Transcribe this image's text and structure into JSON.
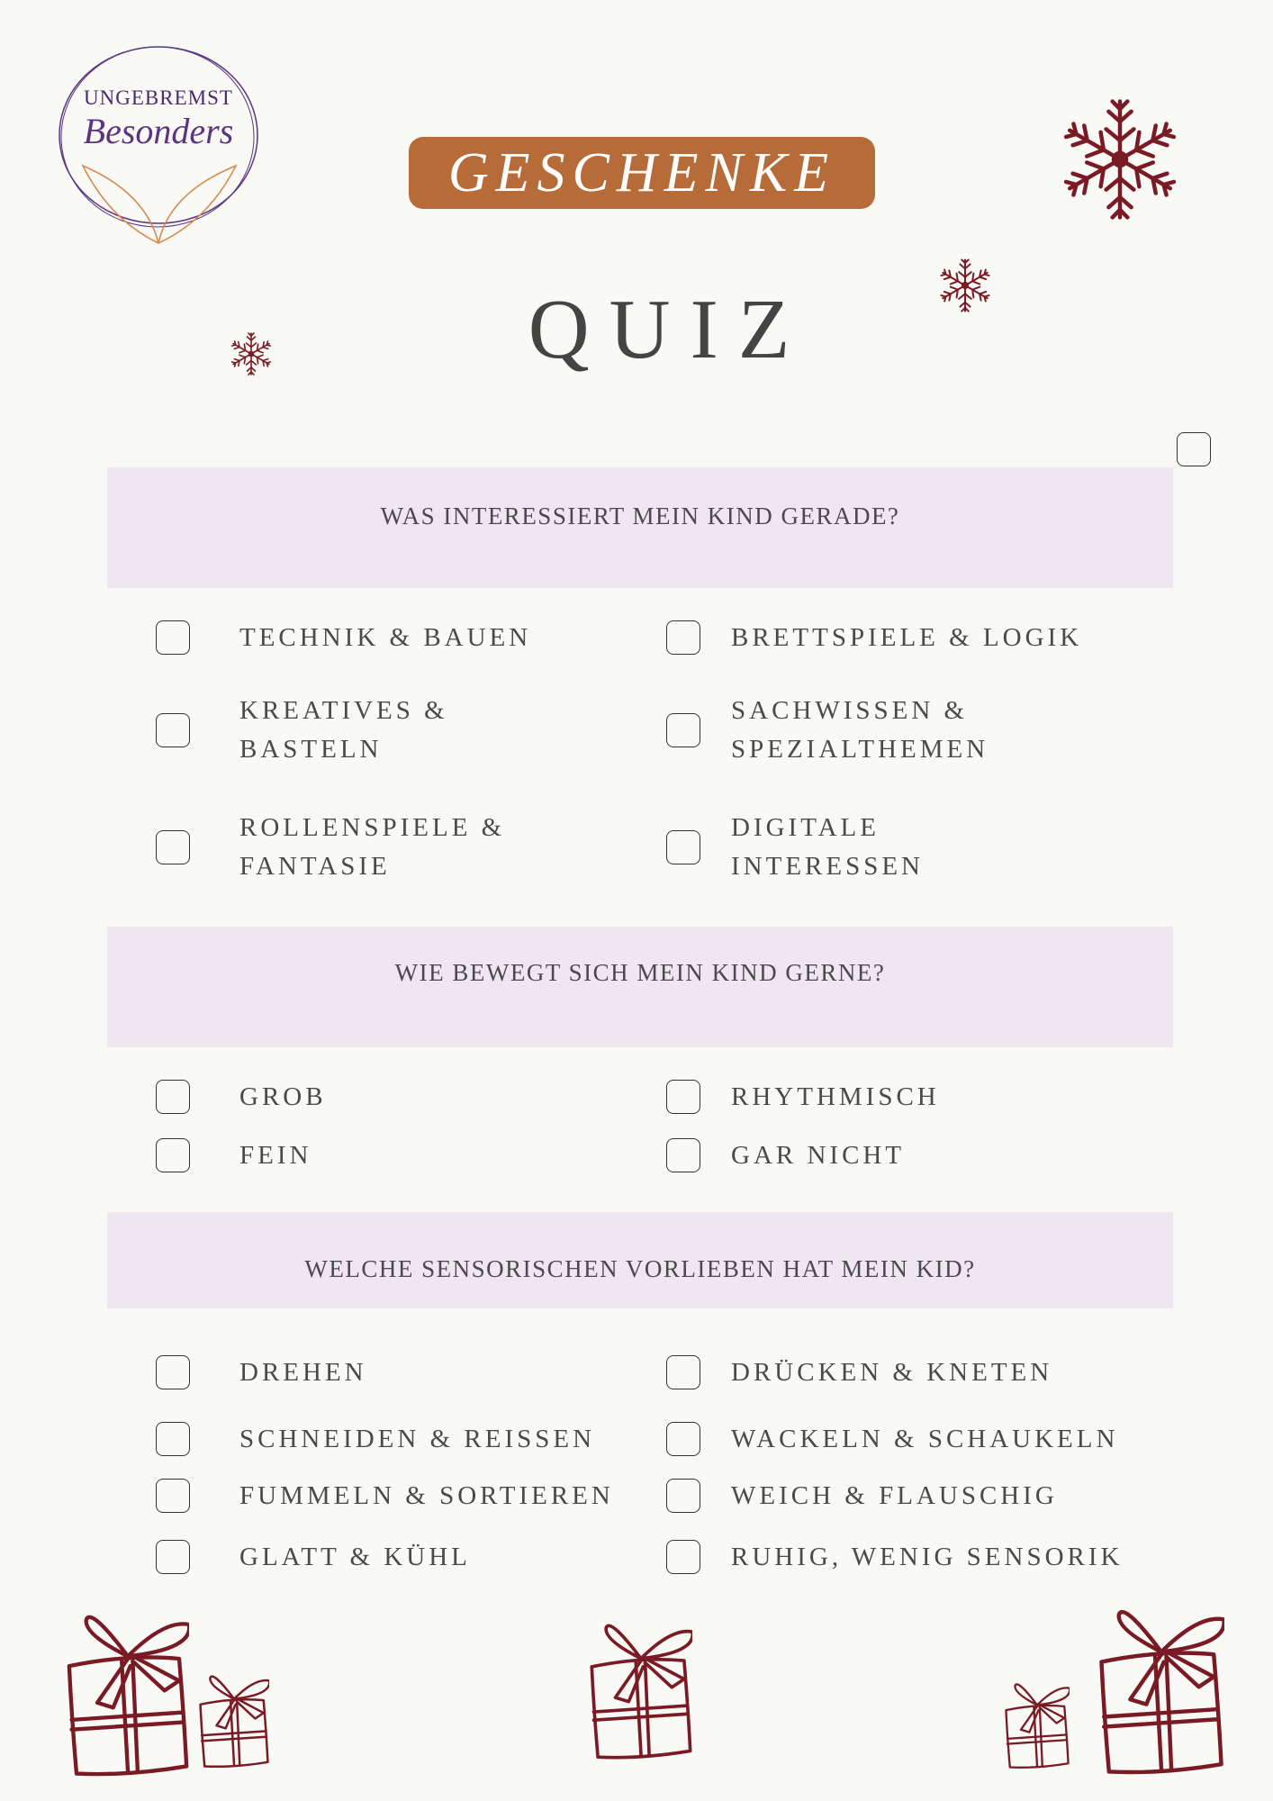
{
  "logo": {
    "line1": "UNGEBREMST",
    "line2": "Besonders"
  },
  "header": {
    "title": "GESCHENKE",
    "subtitle": "QUIZ"
  },
  "colors": {
    "background": "#f9f9f6",
    "band": "#efe6f2",
    "accent": "#b76b38",
    "ornament": "#7a1a24",
    "logo_purple": "#5b3580",
    "logo_leaf": "#d98a4e"
  },
  "sections": [
    {
      "question": "WAS INTERESSIERT MEIN KIND GERADE?",
      "options": [
        {
          "label": "TECHNIK & BAUEN",
          "checked": false
        },
        {
          "label": "BRETTSPIELE & LOGIK",
          "checked": false
        },
        {
          "label": "KREATIVES &\nBASTELN",
          "checked": false
        },
        {
          "label": "SACHWISSEN &\nSPEZIALTHEMEN",
          "checked": false
        },
        {
          "label": "ROLLENSPIELE &\nFANTASIE",
          "checked": false
        },
        {
          "label": "DIGITALE\nINTERESSEN",
          "checked": false
        }
      ]
    },
    {
      "question": "WIE BEWEGT SICH MEIN KIND GERNE?",
      "options": [
        {
          "label": "GROB",
          "checked": false
        },
        {
          "label": "RHYTHMISCH",
          "checked": false
        },
        {
          "label": "FEIN",
          "checked": false
        },
        {
          "label": "GAR NICHT",
          "checked": false
        }
      ]
    },
    {
      "question": "WELCHE SENSORISCHEN VORLIEBEN HAT MEIN KID?",
      "options": [
        {
          "label": "DREHEN",
          "checked": false
        },
        {
          "label": "DRÜCKEN & KNETEN",
          "checked": false
        },
        {
          "label": "SCHNEIDEN & REISSEN",
          "checked": false
        },
        {
          "label": "WACKELN & SCHAUKELN",
          "checked": false
        },
        {
          "label": "FUMMELN & SORTIEREN",
          "checked": false
        },
        {
          "label": "WEICH & FLAUSCHIG",
          "checked": false
        },
        {
          "label": "GLATT & KÜHL",
          "checked": false
        },
        {
          "label": "RUHIG, WENIG SENSORIK",
          "checked": false
        }
      ]
    }
  ]
}
